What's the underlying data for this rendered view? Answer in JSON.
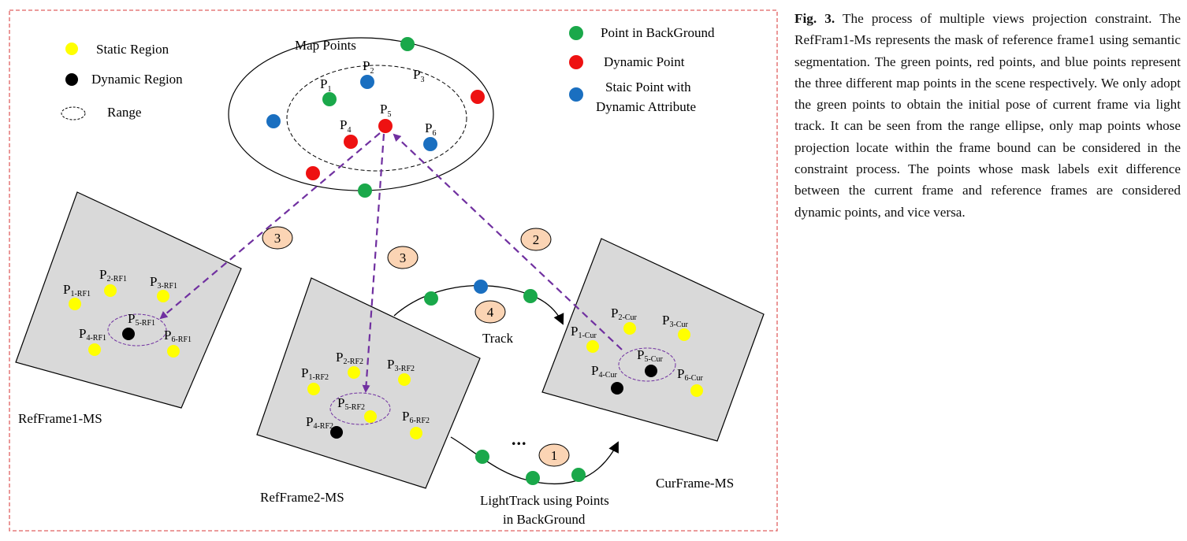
{
  "figure": {
    "legend_left": {
      "static_region": "Static Region",
      "dynamic_region": "Dynamic Region",
      "range": "Range"
    },
    "legend_right": {
      "point_background": "Point in BackGround",
      "dynamic_point": "Dynamic Point",
      "static_dynamic_attr_line1": "Staic Point with",
      "static_dynamic_attr_line2": "Dynamic Attribute"
    },
    "map_points_label": "Map Points",
    "map_points": {
      "p1": "P",
      "p1_sub": "1",
      "p2": "P",
      "p2_sub": "2",
      "p3": "P",
      "p3_sub": "3",
      "p4": "P",
      "p4_sub": "4",
      "p5": "P",
      "p5_sub": "5",
      "p6": "P",
      "p6_sub": "6"
    },
    "frames": {
      "ref1": {
        "name": "RefFrame1-MS",
        "p1": "P",
        "p1_sub": "1-RF1",
        "p2": "P",
        "p2_sub": "2-RF1",
        "p3": "P",
        "p3_sub": "3-RF1",
        "p4": "P",
        "p4_sub": "4-RF1",
        "p5": "P",
        "p5_sub": "5-RF1",
        "p6": "P",
        "p6_sub": "6-RF1"
      },
      "ref2": {
        "name": "RefFrame2-MS",
        "p1": "P",
        "p1_sub": "1-RF2",
        "p2": "P",
        "p2_sub": "2-RF2",
        "p3": "P",
        "p3_sub": "3-RF2",
        "p4": "P",
        "p4_sub": "4-RF2",
        "p5": "P",
        "p5_sub": "5-RF2",
        "p6": "P",
        "p6_sub": "6-RF2"
      },
      "cur": {
        "name": "CurFrame-MS",
        "p1": "P",
        "p1_sub": "1-Cur",
        "p2": "P",
        "p2_sub": "2-Cur",
        "p3": "P",
        "p3_sub": "3-Cur",
        "p4": "P",
        "p4_sub": "4-Cur",
        "p5": "P",
        "p5_sub": "5-Cur",
        "p6": "P",
        "p6_sub": "6-Cur"
      }
    },
    "steps": {
      "s1": "1",
      "s2": "2",
      "s3a": "3",
      "s3b": "3",
      "s4": "4"
    },
    "track_label": "Track",
    "ellipsis": "...",
    "lighttrack_line1": "LightTrack using Points",
    "lighttrack_line2": "in BackGround",
    "colors": {
      "static_yellow": "#ffff00",
      "dynamic_black": "#000000",
      "background_green": "#1aa84a",
      "dynamic_red": "#ee1111",
      "attr_blue": "#1a6fc0",
      "projection_arrow": "#7030a0",
      "frame_gray": "#d9d9d9",
      "step_fill": "#fbd4b4",
      "border_red": "#e06060"
    }
  },
  "caption": {
    "label": "Fig. 3.",
    "text": "The process of multiple views projection constraint. The RefFram1-Ms represents the mask of reference frame1 using semantic segmentation. The green points, red points, and blue points represent the three different map points in the scene respectively. We only adopt the green points to obtain the initial pose of current frame via light track. It can be seen from the range ellipse, only map points whose pro­jection locate within the frame bound can be consid­ered in the constraint process. The points whose mask labels exit difference between the current frame and reference frames are considered dynamic points, and vice versa."
  }
}
